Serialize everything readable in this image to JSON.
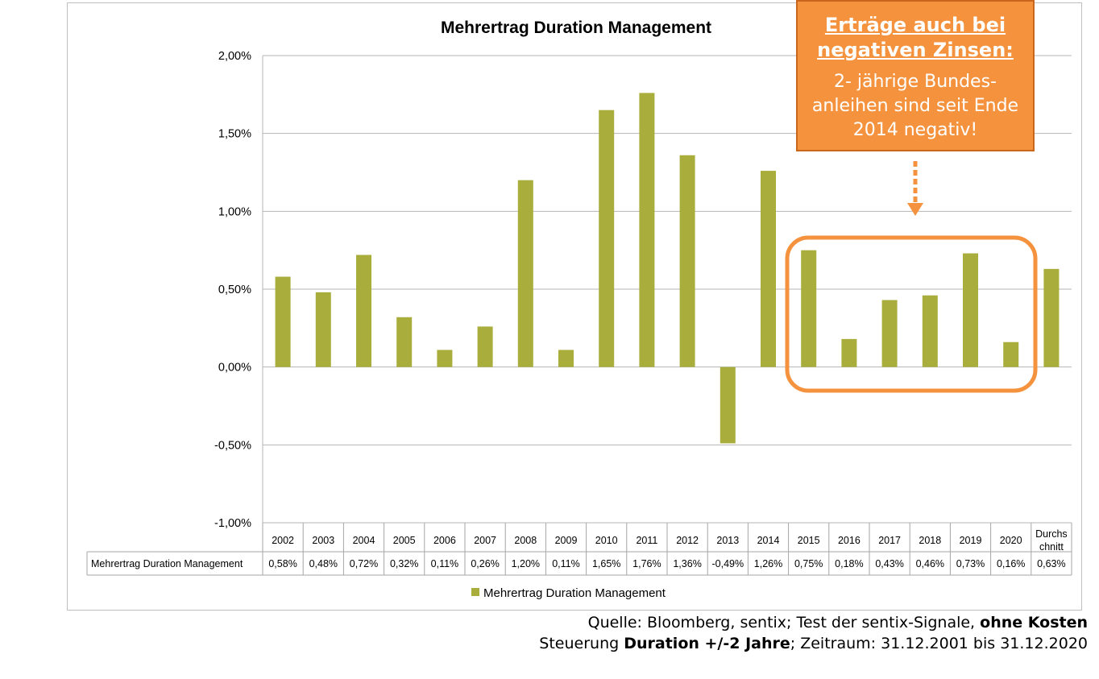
{
  "chart_data": {
    "type": "bar",
    "title": "Mehrertrag Duration Management",
    "categories": [
      "2002",
      "2003",
      "2004",
      "2005",
      "2006",
      "2007",
      "2008",
      "2009",
      "2010",
      "2011",
      "2012",
      "2013",
      "2014",
      "2015",
      "2016",
      "2017",
      "2018",
      "2019",
      "2020",
      "Durchs chnitt"
    ],
    "series": [
      {
        "name": "Mehrertrag Duration Management",
        "values": [
          0.58,
          0.48,
          0.72,
          0.32,
          0.11,
          0.26,
          1.2,
          0.11,
          1.65,
          1.76,
          1.36,
          -0.49,
          1.26,
          0.75,
          0.18,
          0.43,
          0.46,
          0.73,
          0.16,
          0.63
        ],
        "labels": [
          "0,58%",
          "0,48%",
          "0,72%",
          "0,32%",
          "0,11%",
          "0,26%",
          "1,20%",
          "0,11%",
          "1,65%",
          "1,76%",
          "1,36%",
          "-0,49%",
          "1,26%",
          "0,75%",
          "0,18%",
          "0,43%",
          "0,46%",
          "0,73%",
          "0,16%",
          "0,63%"
        ],
        "color": "#a9ad3c"
      }
    ],
    "ylim": [
      -1.0,
      2.0
    ],
    "yticks": [
      2.0,
      1.5,
      1.0,
      0.5,
      0.0,
      -0.5,
      -1.0
    ],
    "ytick_labels": [
      "2,00%",
      "1,50%",
      "1,00%",
      "0,50%",
      "0,00%",
      "-0,50%",
      "-1,00%"
    ],
    "grid": true,
    "data_table": true,
    "legend": "bottom"
  },
  "callout": {
    "title": "Erträge auch bei negativen Zinsen:",
    "body": "2- jährige Bundes-anleihen sind seit Ende 2014 negativ!",
    "color": "#f5923e",
    "highlight_years": [
      "2015",
      "2020"
    ]
  },
  "source": {
    "line1_prefix": "Quelle: Bloomberg, sentix; Test der sentix-Signale, ",
    "line1_bold": "ohne Kosten",
    "line2_prefix": "Steuerung ",
    "line2_bold": "Duration +/-2 Jahre",
    "line2_suffix": "; Zeitraum: 31.12.2001 bis 31.12.2020"
  }
}
